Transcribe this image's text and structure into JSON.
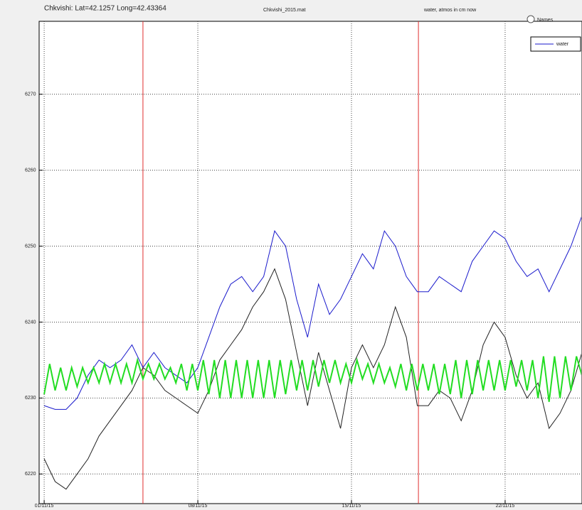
{
  "controls": {
    "radio_label": "Names"
  },
  "chart_data": {
    "type": "line",
    "title": "Chkvishi: Lat=42.1257 Long=42.43364",
    "subtitle": "Chkvishi_2015.mat",
    "annotation": "water, atmos in cm now",
    "xlim": [
      0.77,
      25.47
    ],
    "ylim": [
      6216.1,
      6279.6
    ],
    "xticks": [
      {
        "value": 1,
        "label": "01/11/15"
      },
      {
        "value": 8,
        "label": "08/11/15"
      },
      {
        "value": 15,
        "label": "15/11/15"
      },
      {
        "value": 22,
        "label": "22/11/15"
      }
    ],
    "yticks": [
      6220,
      6230,
      6240,
      6250,
      6260,
      6270
    ],
    "grid": true,
    "legend": "upper right",
    "vlines": [
      {
        "x": 5.5,
        "color": "#e03030"
      },
      {
        "x": 18.05,
        "color": "#e03030"
      }
    ],
    "series": [
      {
        "name": "water",
        "color": "#1a1acc",
        "width": 1,
        "x": [
          1,
          1.5,
          2,
          2.5,
          3,
          3.5,
          4,
          4.5,
          5,
          5.5,
          6,
          6.5,
          7,
          7.5,
          8,
          8.5,
          9,
          9.5,
          10,
          10.5,
          11,
          11.5,
          12,
          12.5,
          13,
          13.5,
          14,
          14.5,
          15,
          15.5,
          16,
          16.5,
          17,
          17.5,
          18,
          18.5,
          19,
          19.5,
          20,
          20.5,
          21,
          21.5,
          22,
          22.5,
          23,
          23.5,
          24,
          24.5,
          25,
          25.5
        ],
        "values": [
          6229,
          6228.5,
          6228.5,
          6230,
          6233,
          6235,
          6234,
          6235,
          6237,
          6234,
          6236,
          6234,
          6233,
          6232,
          6234,
          6238,
          6242,
          6245,
          6246,
          6244,
          6246,
          6252,
          6250,
          6243,
          6238,
          6245,
          6241,
          6243,
          6246,
          6249,
          6247,
          6252,
          6250,
          6246,
          6244,
          6244,
          6246,
          6245,
          6244,
          6248,
          6250,
          6252,
          6251,
          6248,
          6246,
          6247,
          6244,
          6247,
          6250,
          6254
        ]
      },
      {
        "color": "#222222",
        "width": 1,
        "x": [
          1,
          1.5,
          2,
          2.5,
          3,
          3.5,
          4,
          4.5,
          5,
          5.5,
          6,
          6.5,
          7,
          7.5,
          8,
          8.5,
          9,
          9.5,
          10,
          10.5,
          11,
          11.5,
          12,
          12.5,
          13,
          13.5,
          14,
          14.5,
          15,
          15.5,
          16,
          16.5,
          17,
          17.5,
          18,
          18.5,
          19,
          19.5,
          20,
          20.5,
          21,
          21.5,
          22,
          22.5,
          23,
          23.5,
          24,
          24.5,
          25,
          25.5
        ],
        "values": [
          6222,
          6219,
          6218,
          6220,
          6222,
          6225,
          6227,
          6229,
          6231,
          6234,
          6233,
          6231,
          6230,
          6229,
          6228,
          6231,
          6235,
          6237,
          6239,
          6242,
          6244,
          6247,
          6243,
          6236,
          6229,
          6236,
          6231,
          6226,
          6234,
          6237,
          6234,
          6237,
          6242,
          6238,
          6229,
          6229,
          6231,
          6230,
          6227,
          6231,
          6237,
          6240,
          6238,
          6233,
          6230,
          6232,
          6226,
          6228,
          6231,
          6236
        ]
      },
      {
        "color": "#22dd22",
        "width": 2,
        "x": [
          1,
          1.25,
          1.5,
          1.75,
          2,
          2.25,
          2.5,
          2.75,
          3,
          3.25,
          3.5,
          3.75,
          4,
          4.25,
          4.5,
          4.75,
          5,
          5.25,
          5.5,
          5.75,
          6,
          6.25,
          6.5,
          6.75,
          7,
          7.25,
          7.5,
          7.75,
          8,
          8.25,
          8.5,
          8.75,
          9,
          9.25,
          9.5,
          9.75,
          10,
          10.25,
          10.5,
          10.75,
          11,
          11.25,
          11.5,
          11.75,
          12,
          12.25,
          12.5,
          12.75,
          13,
          13.25,
          13.5,
          13.75,
          14,
          14.25,
          14.5,
          14.75,
          15,
          15.25,
          15.5,
          15.75,
          16,
          16.25,
          16.5,
          16.75,
          17,
          17.25,
          17.5,
          17.75,
          18,
          18.25,
          18.5,
          18.75,
          19,
          19.25,
          19.5,
          19.75,
          20,
          20.25,
          20.5,
          20.75,
          21,
          21.25,
          21.5,
          21.75,
          22,
          22.25,
          22.5,
          22.75,
          23,
          23.25,
          23.5,
          23.75,
          24,
          24.25,
          24.5,
          24.75,
          25,
          25.25,
          25.5
        ],
        "values": [
          6230.5,
          6234.5,
          6231,
          6234,
          6231,
          6234,
          6231.5,
          6234,
          6232,
          6234,
          6232,
          6234.5,
          6232,
          6234.5,
          6232,
          6234.5,
          6232,
          6235,
          6232.5,
          6234.5,
          6232.5,
          6234.5,
          6232.5,
          6234,
          6232,
          6234.5,
          6231,
          6234.5,
          6231,
          6235,
          6230.5,
          6235,
          6230,
          6235,
          6230,
          6235,
          6230,
          6235,
          6230,
          6235,
          6230,
          6235,
          6230,
          6235,
          6230.5,
          6235,
          6231,
          6235,
          6231,
          6235,
          6231.5,
          6235,
          6232,
          6235,
          6232,
          6234.5,
          6232,
          6235,
          6232.5,
          6234.5,
          6232,
          6234.5,
          6232,
          6234,
          6231.5,
          6234.5,
          6231,
          6234.5,
          6231,
          6234.5,
          6231,
          6234.5,
          6230.5,
          6234.5,
          6230.5,
          6235,
          6230,
          6235,
          6230.5,
          6235,
          6231,
          6235,
          6231,
          6235,
          6231,
          6235,
          6231.5,
          6235,
          6231,
          6235,
          6230,
          6235.5,
          6229.5,
          6235.5,
          6230,
          6235.5,
          6231,
          6235.5,
          6233
        ]
      }
    ]
  }
}
